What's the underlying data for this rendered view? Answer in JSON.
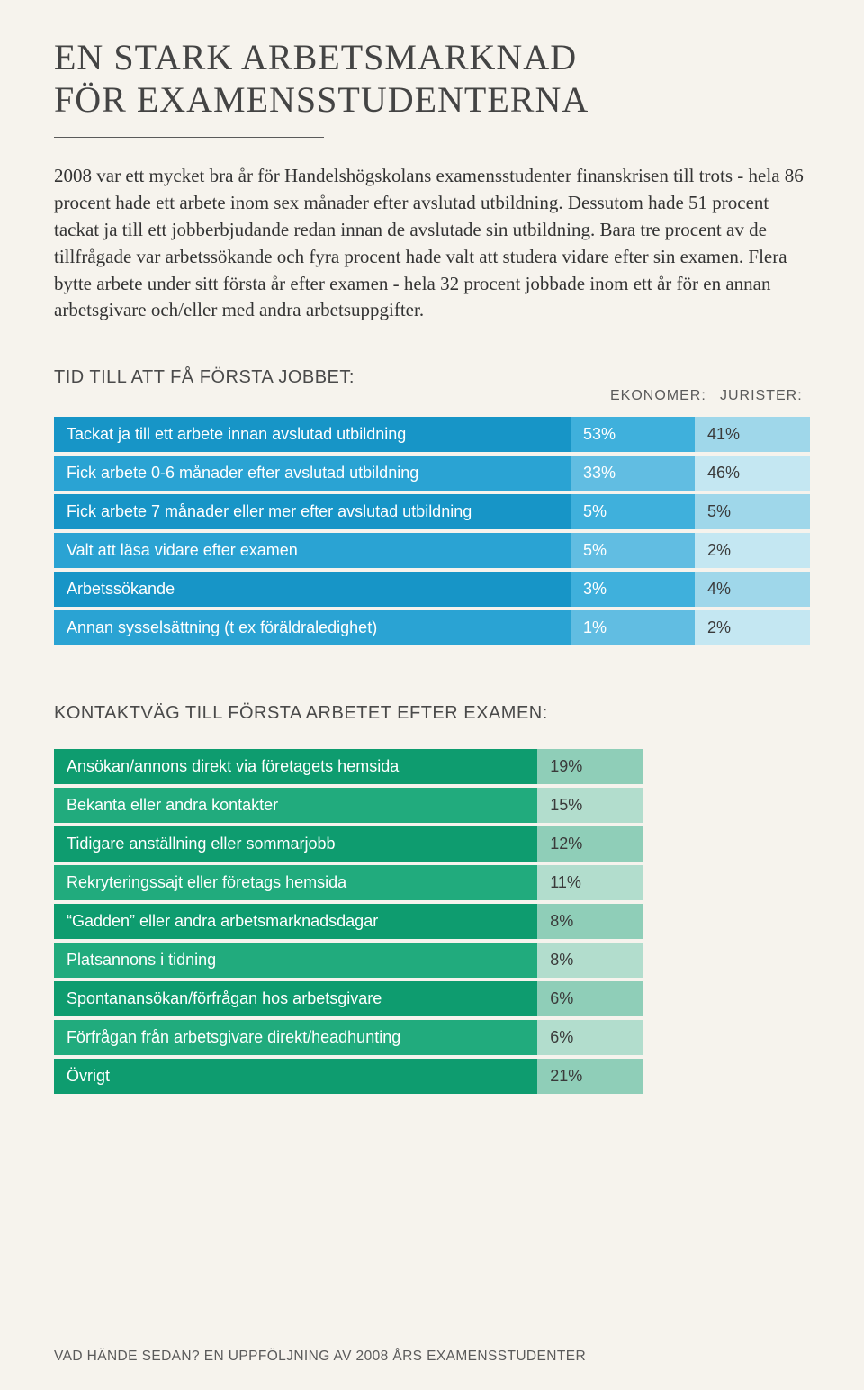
{
  "title_line1": "EN STARK ARBETSMARKNAD",
  "title_line2": "FÖR EXAMENSSTUDENTERNA",
  "body_text": "2008 var ett mycket bra år för Handelshögskolans examensstudenter finanskrisen till trots - hela 86 procent hade ett arbete inom sex månader efter avslutad utbildning. Dessutom hade 51 procent tackat ja till ett jobberbjudande redan innan de avslutade sin utbildning. Bara tre procent av de tillfrågade var arbetssökande och fyra procent hade valt att studera vidare efter sin examen. Flera bytte arbete under sitt första år efter examen - hela 32 procent jobbade inom ett år för en annan arbetsgivare och/eller med andra arbetsuppgifter.",
  "table1": {
    "heading": "TID TILL ATT FÅ FÖRSTA JOBBET:",
    "col_headers": [
      "EKONOMER:",
      "JURISTER:"
    ],
    "label_bg_dark": "#1795c7",
    "label_bg_light": "#2aa3d3",
    "val1_bg_dark": "#3fb0dc",
    "val1_bg_light": "#61bde2",
    "val2_bg_dark": "#9fd7ea",
    "val2_bg_light": "#c4e7f2",
    "rows": [
      {
        "label": "Tackat ja till ett arbete innan avslutad utbildning",
        "v1": "53%",
        "v2": "41%"
      },
      {
        "label": "Fick arbete 0-6 månader efter avslutad utbildning",
        "v1": "33%",
        "v2": "46%"
      },
      {
        "label": "Fick arbete 7 månader eller mer efter avslutad utbildning",
        "v1": "5%",
        "v2": "5%"
      },
      {
        "label": "Valt att läsa vidare efter examen",
        "v1": "5%",
        "v2": "2%"
      },
      {
        "label": "Arbetssökande",
        "v1": "3%",
        "v2": "4%"
      },
      {
        "label": "Annan sysselsättning (t ex föräldraledighet)",
        "v1": "1%",
        "v2": "2%"
      }
    ]
  },
  "table2": {
    "heading": "KONTAKTVÄG TILL FÖRSTA ARBETET EFTER EXAMEN:",
    "label_bg_dark": "#0e9c6f",
    "label_bg_light": "#21ab7d",
    "val1_bg_dark": "#8fceb8",
    "val1_bg_light": "#b2ddcd",
    "rows": [
      {
        "label": "Ansökan/annons direkt via företagets hemsida",
        "v1": "19%"
      },
      {
        "label": "Bekanta eller andra kontakter",
        "v1": "15%"
      },
      {
        "label": "Tidigare anställning eller sommarjobb",
        "v1": "12%"
      },
      {
        "label": "Rekryteringssajt eller företags hemsida",
        "v1": "11%"
      },
      {
        "label": "“Gadden” eller andra arbetsmarknadsdagar",
        "v1": "8%"
      },
      {
        "label": "Platsannons i tidning",
        "v1": "8%"
      },
      {
        "label": "Spontanansökan/förfrågan hos arbetsgivare",
        "v1": "6%"
      },
      {
        "label": "Förfrågan från arbetsgivare direkt/headhunting",
        "v1": "6%"
      },
      {
        "label": "Övrigt",
        "v1": "21%"
      }
    ]
  },
  "footer": "VAD HÄNDE SEDAN? EN UPPFÖLJNING AV 2008 ÅRS EXAMENSSTUDENTER"
}
